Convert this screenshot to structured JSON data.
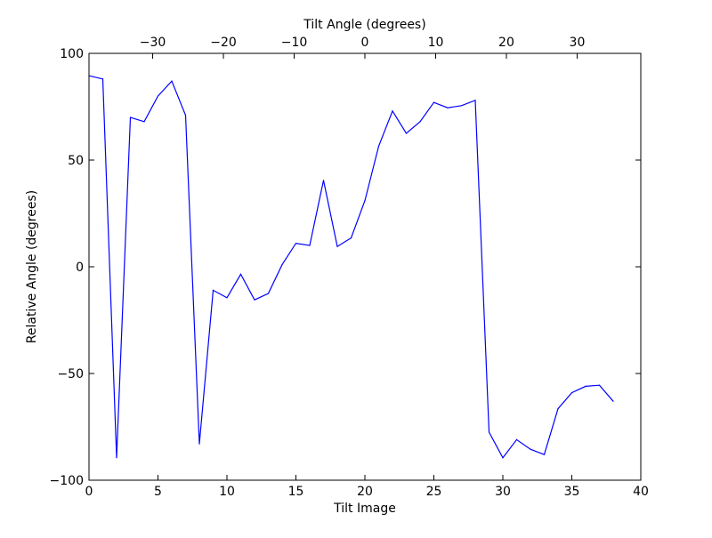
{
  "chart_data": {
    "type": "line",
    "xlabel": "Tilt Image",
    "ylabel": "Relative Angle (degrees)",
    "top_xlabel": "Tilt Angle (degrees)",
    "xlim": [
      0,
      40
    ],
    "ylim": [
      -100,
      100
    ],
    "top_xlim": [
      -39,
      39
    ],
    "x_ticks": [
      0,
      5,
      10,
      15,
      20,
      25,
      30,
      35,
      40
    ],
    "y_ticks": [
      -100,
      -50,
      0,
      50,
      100
    ],
    "top_x_ticks": [
      -30,
      -20,
      -10,
      0,
      10,
      20,
      30
    ],
    "x_tick_labels": [
      "0",
      "5",
      "10",
      "15",
      "20",
      "25",
      "30",
      "35",
      "40"
    ],
    "y_tick_labels": [
      "−100",
      "−50",
      "0",
      "50",
      "100"
    ],
    "top_x_tick_labels": [
      "−30",
      "−20",
      "−10",
      "0",
      "10",
      "20",
      "30"
    ],
    "grid": false,
    "line_color": "#0000ff",
    "series": [
      {
        "x": [
          0,
          1,
          2,
          3,
          4,
          5,
          6,
          7,
          8,
          9,
          10,
          11,
          12,
          13,
          14,
          15,
          16,
          17,
          18,
          19,
          20,
          21,
          22,
          23,
          24,
          25,
          26,
          27,
          28,
          29,
          30,
          31,
          32,
          33,
          34,
          35,
          36,
          37,
          38
        ],
        "values": [
          89.5,
          88,
          -89.5,
          70,
          68,
          80,
          87,
          71,
          -83,
          -11,
          -14.5,
          -3.5,
          -15.5,
          -12.5,
          1,
          11,
          10,
          40.5,
          9.5,
          13.5,
          31,
          56.5,
          73,
          62.5,
          68,
          77,
          74.5,
          75.5,
          78,
          -77.5,
          -89.5,
          -81,
          -85.5,
          -88,
          -66.5,
          -59,
          -56,
          -55.5,
          -63
        ]
      }
    ]
  }
}
